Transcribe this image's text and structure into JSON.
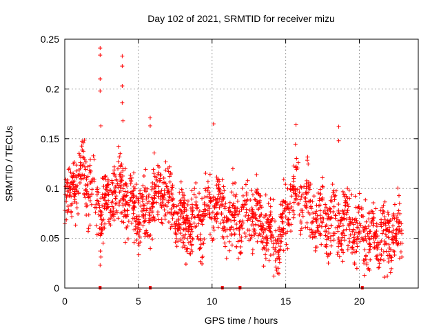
{
  "chart_data": {
    "type": "scatter",
    "title": "Day 102 of 2021, SRMTID for receiver mizu",
    "xlabel": "GPS time / hours",
    "ylabel": "SRMTID / TECUs",
    "xlim": [
      0,
      24
    ],
    "ylim": [
      0,
      0.25
    ],
    "x_ticks": [
      0,
      5,
      10,
      15,
      20
    ],
    "x_tick_labels": [
      "0",
      "5",
      "10",
      "15",
      "20"
    ],
    "y_ticks": [
      0,
      0.05,
      0.1,
      0.15,
      0.2,
      0.25
    ],
    "y_tick_labels": [
      "0",
      "0.05",
      "0.1",
      "0.15",
      "0.2",
      "0.25"
    ],
    "grid": true,
    "series_color": "#ff0000",
    "marker": "plus",
    "gap_markers_hours": [
      2.4,
      5.8,
      10.7,
      11.9,
      20.2
    ],
    "trend_profile": [
      {
        "x": 0.0,
        "y": 0.08
      },
      {
        "x": 0.5,
        "y": 0.095
      },
      {
        "x": 1.2,
        "y": 0.11
      },
      {
        "x": 2.0,
        "y": 0.1
      },
      {
        "x": 2.8,
        "y": 0.085
      },
      {
        "x": 3.5,
        "y": 0.095
      },
      {
        "x": 4.5,
        "y": 0.085
      },
      {
        "x": 5.5,
        "y": 0.08
      },
      {
        "x": 6.5,
        "y": 0.09
      },
      {
        "x": 7.5,
        "y": 0.075
      },
      {
        "x": 8.5,
        "y": 0.07
      },
      {
        "x": 9.5,
        "y": 0.065
      },
      {
        "x": 10.5,
        "y": 0.085
      },
      {
        "x": 11.5,
        "y": 0.07
      },
      {
        "x": 12.5,
        "y": 0.07
      },
      {
        "x": 13.5,
        "y": 0.065
      },
      {
        "x": 14.5,
        "y": 0.055
      },
      {
        "x": 15.5,
        "y": 0.08
      },
      {
        "x": 16.5,
        "y": 0.085
      },
      {
        "x": 17.5,
        "y": 0.075
      },
      {
        "x": 18.5,
        "y": 0.06
      },
      {
        "x": 19.5,
        "y": 0.065
      },
      {
        "x": 20.5,
        "y": 0.06
      },
      {
        "x": 21.5,
        "y": 0.045
      },
      {
        "x": 22.5,
        "y": 0.055
      },
      {
        "x": 22.9,
        "y": 0.06
      }
    ],
    "spread": 0.028,
    "n_points": 1900,
    "outliers": [
      {
        "x": 2.4,
        "y": 0.241
      },
      {
        "x": 2.4,
        "y": 0.234
      },
      {
        "x": 2.4,
        "y": 0.21
      },
      {
        "x": 2.4,
        "y": 0.198
      },
      {
        "x": 2.45,
        "y": 0.163
      },
      {
        "x": 3.9,
        "y": 0.233
      },
      {
        "x": 3.9,
        "y": 0.223
      },
      {
        "x": 3.9,
        "y": 0.203
      },
      {
        "x": 3.9,
        "y": 0.186
      },
      {
        "x": 3.95,
        "y": 0.168
      },
      {
        "x": 5.8,
        "y": 0.171
      },
      {
        "x": 5.8,
        "y": 0.163
      },
      {
        "x": 15.7,
        "y": 0.164
      },
      {
        "x": 18.6,
        "y": 0.162
      },
      {
        "x": 18.6,
        "y": 0.148
      },
      {
        "x": 10.1,
        "y": 0.165
      },
      {
        "x": 2.4,
        "y": 0.023
      },
      {
        "x": 21.7,
        "y": 0.011
      },
      {
        "x": 21.9,
        "y": 0.012
      },
      {
        "x": 14.2,
        "y": 0.012
      }
    ]
  }
}
